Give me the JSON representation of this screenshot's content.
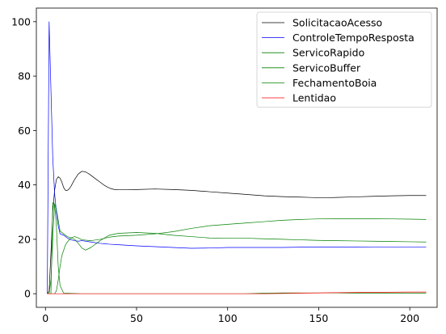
{
  "chart_data": {
    "type": "line",
    "title": "",
    "xlabel": "",
    "ylabel": "",
    "xlim": [
      -5,
      215
    ],
    "ylim": [
      -5,
      105
    ],
    "xticks": [
      0,
      50,
      100,
      150,
      200
    ],
    "yticks": [
      0,
      20,
      40,
      60,
      80,
      100
    ],
    "grid": false,
    "legend_placement": "top-right",
    "series": [
      {
        "name": "SolicitacaoAcesso",
        "color": "#000000",
        "x": [
          1,
          2,
          3,
          4,
          5,
          6,
          7,
          8,
          9,
          10,
          11,
          12,
          13,
          14,
          16,
          18,
          20,
          22,
          24,
          26,
          28,
          30,
          32,
          34,
          36,
          38,
          40,
          45,
          50,
          60,
          70,
          80,
          90,
          100,
          110,
          120,
          130,
          140,
          150,
          155,
          160,
          170,
          180,
          190,
          200,
          209
        ],
        "y": [
          0,
          1,
          15,
          30,
          38,
          42,
          43,
          42.5,
          41,
          39,
          38,
          38,
          38.5,
          39.5,
          42,
          44,
          45,
          44.8,
          44,
          43,
          42,
          41,
          40,
          39.2,
          38.6,
          38.3,
          38.2,
          38.2,
          38.3,
          38.5,
          38.3,
          38,
          37.5,
          37,
          36.5,
          36,
          35.7,
          35.5,
          35.3,
          35.3,
          35.4,
          35.6,
          35.8,
          36,
          36.1,
          36.1
        ]
      },
      {
        "name": "ControleTempoResposta",
        "color": "#0000ff",
        "x": [
          1,
          2,
          3,
          4,
          5,
          6,
          7,
          8,
          10,
          12,
          14,
          16,
          18,
          20,
          25,
          30,
          35,
          40,
          50,
          60,
          70,
          80,
          90,
          100,
          110,
          120,
          130,
          140,
          150,
          160,
          170,
          180,
          190,
          200,
          209
        ],
        "y": [
          0,
          100,
          75,
          50,
          37,
          30,
          25,
          22,
          21.5,
          20.5,
          19.8,
          19.5,
          19.3,
          19.5,
          19,
          18.5,
          18.2,
          18,
          17.6,
          17.3,
          17,
          16.7,
          16.8,
          17,
          17,
          17,
          17,
          17.1,
          17.1,
          17.1,
          17.1,
          17.2,
          17.2,
          17.2,
          17.2
        ]
      },
      {
        "name": "ServicoRapido",
        "color": "#008000",
        "x": [
          1,
          2,
          3,
          4,
          5,
          6,
          7,
          8,
          10,
          12,
          14,
          16,
          18,
          20,
          22,
          25,
          30,
          35,
          40,
          50,
          60,
          70,
          80,
          90,
          100,
          110,
          120,
          130,
          140,
          150,
          160,
          170,
          180,
          190,
          200,
          209
        ],
        "y": [
          0,
          0,
          5,
          20,
          33,
          31,
          27,
          23,
          22,
          21,
          20.5,
          20,
          18.5,
          16.8,
          16,
          17,
          19.5,
          21.5,
          22.2,
          22.5,
          22.2,
          21.5,
          21,
          20.5,
          20.4,
          20.4,
          20.2,
          20,
          19.8,
          19.6,
          19.5,
          19.4,
          19.3,
          19.2,
          19.1,
          19
        ]
      },
      {
        "name": "ServicoBuffer",
        "color": "#008000",
        "x": [
          1,
          3,
          5,
          6,
          7,
          8,
          9,
          10,
          11,
          12,
          14,
          16,
          18,
          20,
          25,
          30,
          35,
          40,
          50,
          60,
          70,
          80,
          90,
          100,
          110,
          120,
          130,
          140,
          150,
          160,
          170,
          180,
          190,
          200,
          209
        ],
        "y": [
          0,
          0,
          0,
          1,
          5,
          10,
          14,
          16,
          18,
          19,
          20.5,
          21,
          20.5,
          19.8,
          19.5,
          20,
          20.8,
          21.2,
          21.5,
          22,
          22.8,
          24,
          25,
          25.5,
          26,
          26.5,
          27,
          27.3,
          27.5,
          27.6,
          27.6,
          27.6,
          27.5,
          27.4,
          27.3
        ]
      },
      {
        "name": "FechamentoBoia",
        "color": "#008000",
        "x": [
          1,
          3,
          4,
          5,
          6,
          7,
          8,
          10,
          20,
          50,
          100,
          110,
          120,
          130,
          140,
          150,
          160,
          170,
          180,
          190,
          200,
          209
        ],
        "y": [
          0,
          0,
          33.5,
          33,
          25,
          10,
          3,
          0.2,
          0,
          0,
          0,
          0,
          0.2,
          0.3,
          0.3,
          0.3,
          0.3,
          0.2,
          0.2,
          0.2,
          0.2,
          0.2
        ]
      },
      {
        "name": "Lentidao",
        "color": "#ff0000",
        "x": [
          1,
          50,
          100,
          120,
          140,
          160,
          180,
          200,
          209
        ],
        "y": [
          0,
          0,
          0,
          0,
          0.2,
          0.4,
          0.5,
          0.6,
          0.6
        ]
      }
    ]
  }
}
